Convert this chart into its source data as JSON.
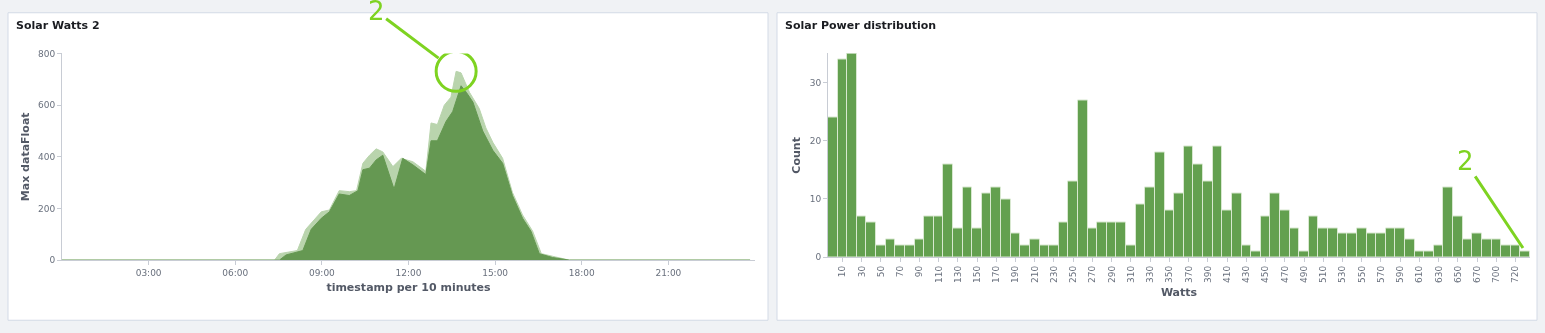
{
  "chart_data": [
    {
      "type": "area",
      "title": "Solar Watts 2",
      "xlabel": "timestamp per 10 minutes",
      "ylabel": "Max dataFloat",
      "xlim": [
        0,
        24
      ],
      "xticks": [
        {
          "value": 3,
          "label": "03:00"
        },
        {
          "value": 6,
          "label": "06:00"
        },
        {
          "value": 9,
          "label": "09:00"
        },
        {
          "value": 12,
          "label": "12:00"
        },
        {
          "value": 15,
          "label": "15:00"
        },
        {
          "value": 18,
          "label": "18:00"
        },
        {
          "value": 21,
          "label": "21:00"
        }
      ],
      "ylim": [
        0,
        800
      ],
      "yticks": [
        0,
        200,
        400,
        600,
        800
      ],
      "series": [
        {
          "color": "#b9d4ad",
          "x": [
            0,
            7.36,
            7.53,
            8.15,
            8.44,
            8.98,
            9.26,
            9.6,
            9.95,
            10.2,
            10.42,
            10.65,
            10.88,
            11.11,
            11.46,
            11.75,
            12.15,
            12.6,
            12.78,
            13.0,
            13.24,
            13.47,
            13.65,
            13.82,
            14.11,
            14.45,
            14.68,
            14.92,
            15.26,
            15.6,
            15.95,
            16.3,
            16.6,
            17.1,
            17.57,
            23.83
          ],
          "values": [
            0,
            0,
            25,
            37,
            119,
            187,
            194,
            269,
            265,
            269,
            375,
            406,
            431,
            419,
            362,
            394,
            381,
            344,
            531,
            525,
            600,
            631,
            731,
            725,
            650,
            587,
            512,
            456,
            394,
            262,
            175,
            112,
            25,
            12,
            0,
            0
          ]
        },
        {
          "color": "#659852",
          "x": [
            0,
            7.53,
            7.76,
            8.34,
            8.63,
            8.98,
            9.26,
            9.6,
            9.95,
            10.25,
            10.42,
            10.65,
            10.88,
            11.11,
            11.5,
            11.8,
            12.15,
            12.6,
            12.78,
            13.0,
            13.3,
            13.53,
            13.82,
            14.0,
            14.23,
            14.57,
            14.92,
            15.26,
            15.6,
            15.95,
            16.24,
            16.53,
            16.99,
            17.57,
            23.83
          ],
          "values": [
            0,
            0,
            20,
            37,
            119,
            162,
            187,
            256,
            250,
            269,
            350,
            356,
            388,
            406,
            275,
            394,
            369,
            331,
            462,
            462,
            537,
            575,
            675,
            650,
            612,
            500,
            425,
            375,
            250,
            162,
            112,
            25,
            10,
            0,
            0
          ]
        }
      ],
      "annotations": [
        {
          "text": "2",
          "x": 13.65,
          "y": 731
        }
      ]
    },
    {
      "type": "bar",
      "title": "Solar Power distribution",
      "xlabel": "Watts",
      "ylabel": "Count",
      "color": "#63a04f",
      "categories": [
        null,
        "10",
        null,
        "30",
        null,
        "50",
        null,
        "70",
        null,
        "90",
        null,
        "110",
        null,
        "130",
        null,
        "150",
        null,
        "170",
        null,
        "190",
        null,
        "210",
        null,
        "230",
        null,
        "250",
        null,
        "270",
        null,
        "290",
        null,
        "310",
        null,
        "330",
        null,
        "350",
        null,
        "370",
        null,
        "390",
        null,
        "410",
        null,
        "430",
        null,
        "450",
        null,
        "470",
        null,
        "490",
        null,
        "510",
        null,
        "530",
        null,
        "550",
        null,
        "570",
        null,
        "590",
        null,
        "610",
        null,
        "630",
        null,
        "650",
        null,
        "670",
        null,
        "700",
        null,
        "720",
        null
      ],
      "values": [
        24,
        34,
        35,
        7,
        6,
        2,
        3,
        2,
        2,
        3,
        7,
        7,
        16,
        5,
        12,
        5,
        11,
        12,
        10,
        4,
        2,
        3,
        2,
        2,
        6,
        13,
        27,
        5,
        6,
        6,
        6,
        2,
        9,
        12,
        18,
        8,
        11,
        19,
        16,
        13,
        19,
        8,
        11,
        2,
        1,
        7,
        11,
        8,
        5,
        1,
        7,
        5,
        5,
        4,
        4,
        5,
        4,
        4,
        5,
        5,
        3,
        1,
        1,
        2,
        12,
        7,
        3,
        4,
        3,
        3,
        2,
        2,
        1
      ],
      "ylim": [
        0,
        35
      ],
      "yticks": [
        0,
        10,
        20,
        30
      ],
      "annotations": [
        {
          "text": "2",
          "y": 1
        }
      ]
    }
  ]
}
